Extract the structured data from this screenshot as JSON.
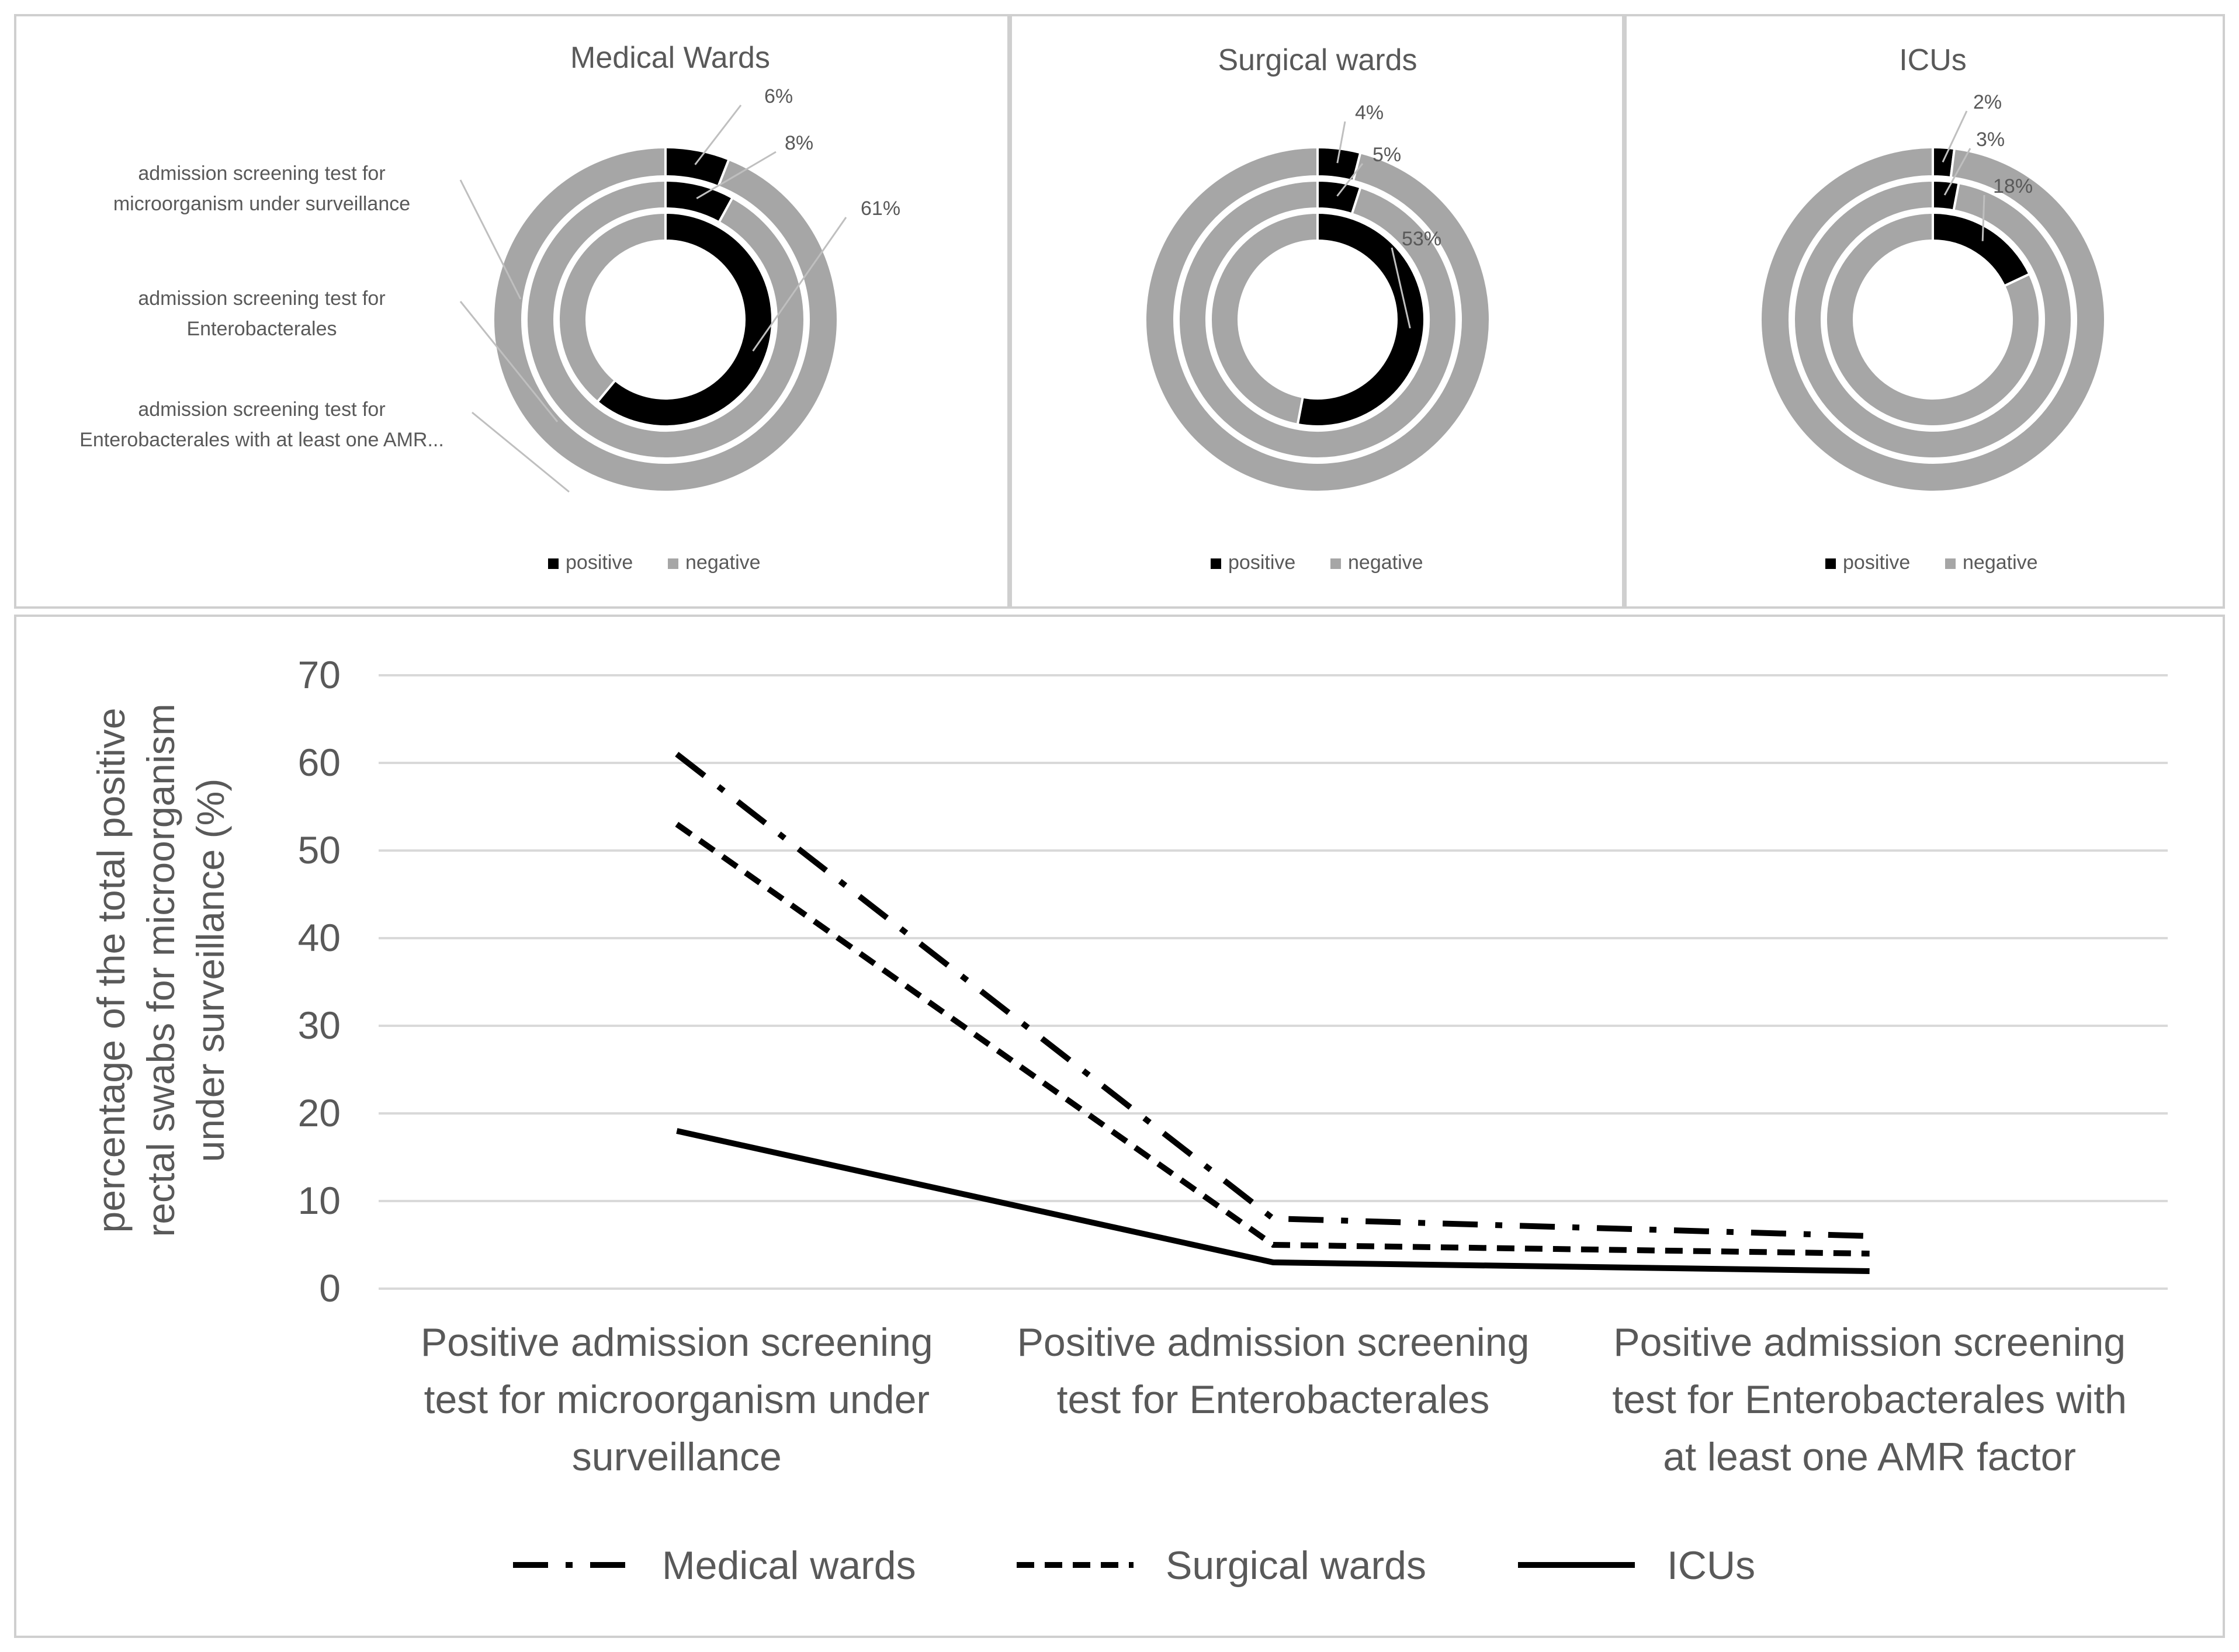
{
  "colors": {
    "positive": "#000000",
    "negative": "#a6a6a6",
    "grid": "#d9d9d9",
    "text": "#595959",
    "leader": "#bfbfbf"
  },
  "donut_panels": [
    {
      "title": "Medical Wards",
      "ring_labels": [
        "admission screening test for microorganism under surveillance",
        "admission screening test for Enterobacterales",
        "admission screening test for Enterobacterales with at least one AMR..."
      ],
      "ring_label_lines": [
        [
          "admission screening test for",
          "microorganism under surveillance"
        ],
        [
          "admission screening test for",
          "Enterobacterales"
        ],
        [
          "admission screening test for",
          "Enterobacterales with at least one AMR..."
        ]
      ],
      "rings_outer_to_inner": [
        {
          "positive_pct": 6,
          "label": "6%"
        },
        {
          "positive_pct": 8,
          "label": "8%"
        },
        {
          "positive_pct": 61,
          "label": "61%"
        }
      ],
      "legend": [
        "positive",
        "negative"
      ]
    },
    {
      "title": "Surgical wards",
      "rings_outer_to_inner": [
        {
          "positive_pct": 4,
          "label": "4%"
        },
        {
          "positive_pct": 5,
          "label": "5%"
        },
        {
          "positive_pct": 53,
          "label": "53%"
        }
      ],
      "legend": [
        "positive",
        "negative"
      ]
    },
    {
      "title": "ICUs",
      "rings_outer_to_inner": [
        {
          "positive_pct": 2,
          "label": "2%"
        },
        {
          "positive_pct": 3,
          "label": "3%"
        },
        {
          "positive_pct": 18,
          "label": "18%"
        }
      ],
      "legend": [
        "positive",
        "negative"
      ]
    }
  ],
  "chart_data": {
    "type": "line",
    "ylabel_lines": [
      "percentage of the total positive",
      "rectal swabs for microorganism",
      "under surveillance (%)"
    ],
    "categories": [
      "Positive admission screening test for microorganism under surveillance",
      "Positive admission screening test for Enterobacterales",
      "Positive admission screening test for Enterobacterales with at least one AMR factor"
    ],
    "category_lines": [
      [
        "Positive admission screening",
        "test for microorganism under",
        "surveillance"
      ],
      [
        "Positive admission screening",
        "test for Enterobacterales"
      ],
      [
        "Positive admission screening",
        "test for Enterobacterales with",
        "at least one AMR factor"
      ]
    ],
    "series": [
      {
        "name": "Medical wards",
        "values": [
          61,
          8,
          6
        ],
        "dash": "dash-dot"
      },
      {
        "name": "Surgical wards",
        "values": [
          53,
          5,
          4
        ],
        "dash": "dashed"
      },
      {
        "name": "ICUs",
        "values": [
          18,
          3,
          2
        ],
        "dash": "solid"
      }
    ],
    "ylim": [
      0,
      70
    ],
    "yticks": [
      0,
      10,
      20,
      30,
      40,
      50,
      60,
      70
    ],
    "grid": true,
    "legend_position": "bottom"
  }
}
